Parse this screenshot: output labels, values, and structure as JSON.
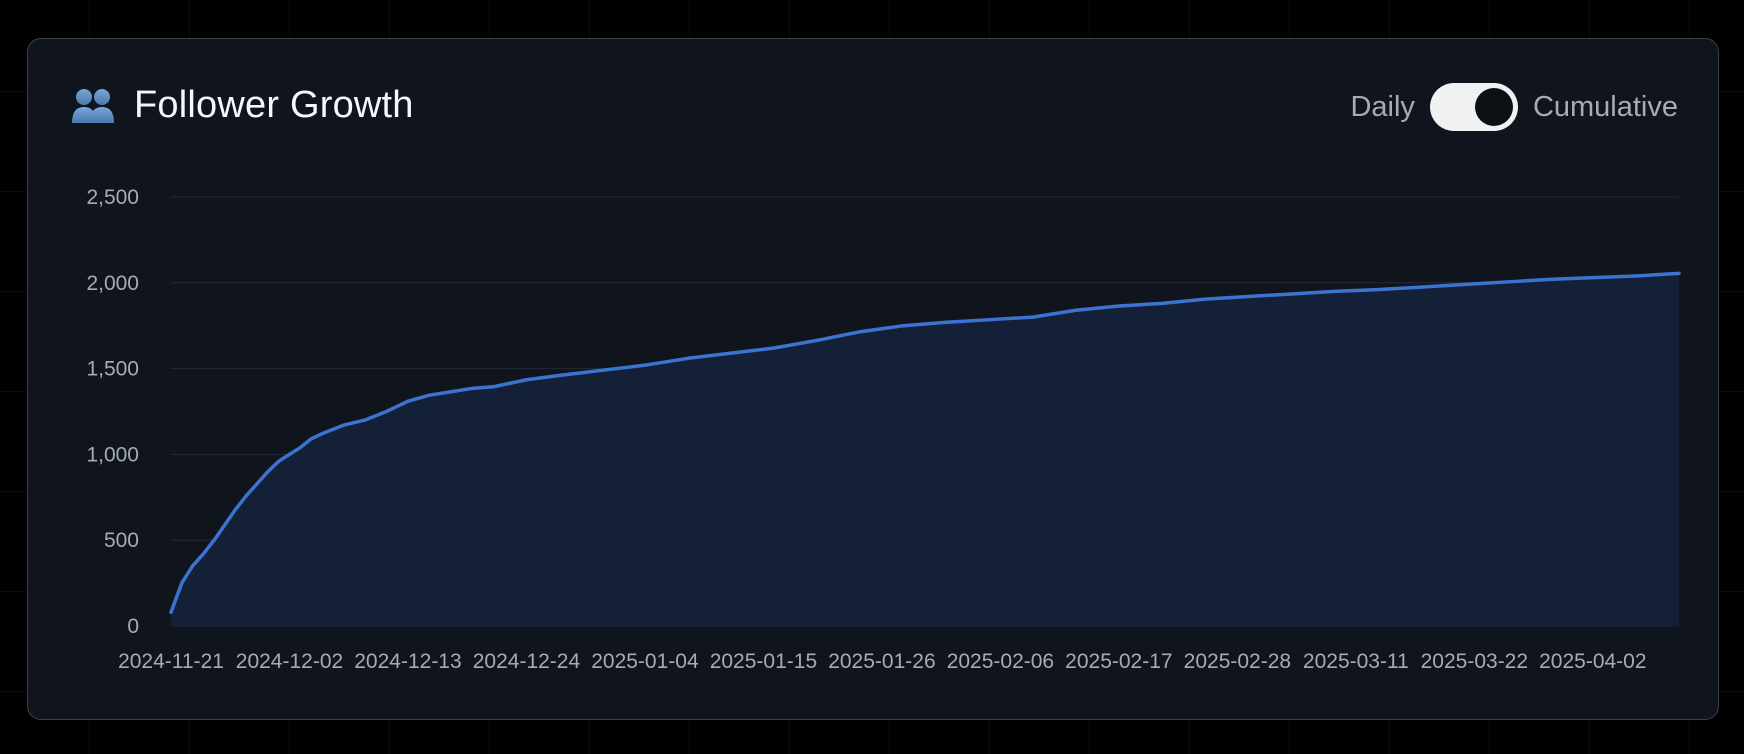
{
  "header": {
    "title": "Follower Growth",
    "icon": "people-icon"
  },
  "toggle": {
    "left_label": "Daily",
    "right_label": "Cumulative",
    "selected": "Cumulative"
  },
  "colors": {
    "line": "#3b74d0",
    "area": "#15213a",
    "background": "#10141c"
  },
  "chart_data": {
    "type": "area",
    "title": "Follower Growth",
    "xlabel": "",
    "ylabel": "",
    "ylim": [
      0,
      2500
    ],
    "y_ticks": [
      0,
      500,
      1000,
      1500,
      2000,
      2500
    ],
    "y_tick_labels": [
      "0",
      "500",
      "1,000",
      "1,500",
      "2,000",
      "2,500"
    ],
    "x_range": [
      "2024-11-21",
      "2025-04-10"
    ],
    "x_tick_labels": [
      "2024-11-21",
      "2024-12-02",
      "2024-12-13",
      "2024-12-24",
      "2025-01-04",
      "2025-01-15",
      "2025-01-26",
      "2025-02-06",
      "2025-02-17",
      "2025-02-28",
      "2025-03-11",
      "2025-03-22",
      "2025-04-02"
    ],
    "grid": true,
    "legend": "none",
    "series": [
      {
        "x": [
          "2024-11-21",
          "2024-11-22",
          "2024-11-23",
          "2024-11-24",
          "2024-11-25",
          "2024-11-26",
          "2024-11-27",
          "2024-11-28",
          "2024-11-29",
          "2024-11-30",
          "2024-12-01",
          "2024-12-02",
          "2024-12-03",
          "2024-12-04",
          "2024-12-05",
          "2024-12-07",
          "2024-12-09",
          "2024-12-11",
          "2024-12-13",
          "2024-12-15",
          "2024-12-17",
          "2024-12-19",
          "2024-12-21",
          "2024-12-24",
          "2024-12-27",
          "2024-12-31",
          "2025-01-04",
          "2025-01-08",
          "2025-01-12",
          "2025-01-16",
          "2025-01-20",
          "2025-01-24",
          "2025-01-28",
          "2025-02-01",
          "2025-02-05",
          "2025-02-09",
          "2025-02-13",
          "2025-02-17",
          "2025-02-21",
          "2025-02-25",
          "2025-03-01",
          "2025-03-05",
          "2025-03-09",
          "2025-03-13",
          "2025-03-17",
          "2025-03-21",
          "2025-03-25",
          "2025-03-29",
          "2025-04-02",
          "2025-04-06",
          "2025-04-10"
        ],
        "y": [
          80,
          250,
          350,
          420,
          500,
          590,
          680,
          760,
          830,
          900,
          960,
          1000,
          1040,
          1090,
          1120,
          1170,
          1200,
          1250,
          1310,
          1345,
          1365,
          1385,
          1395,
          1435,
          1460,
          1490,
          1520,
          1560,
          1590,
          1620,
          1665,
          1715,
          1750,
          1770,
          1785,
          1800,
          1840,
          1865,
          1880,
          1905,
          1920,
          1935,
          1950,
          1960,
          1975,
          1990,
          2005,
          2020,
          2030,
          2040,
          2055
        ]
      }
    ]
  }
}
